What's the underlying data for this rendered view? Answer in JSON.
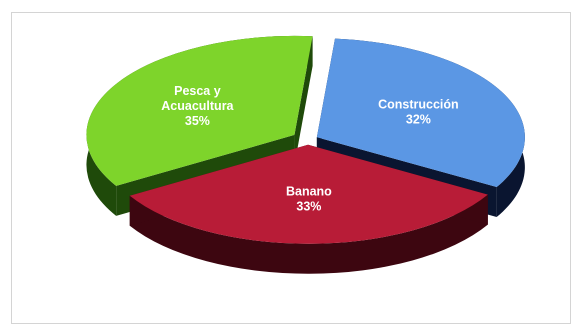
{
  "chart_data": {
    "type": "pie",
    "style": "3d-exploded",
    "slices": [
      {
        "label": "Construcción",
        "value": 32,
        "value_label": "32%",
        "color": "#5b97e4",
        "side_color": "#0a1530"
      },
      {
        "label": "Banano",
        "value": 33,
        "value_label": "33%",
        "color": "#b81c37",
        "side_color": "#3d0610"
      },
      {
        "label": "Pesca y Acuacultura",
        "label_lines": [
          "Pesca y",
          "Acuacultura"
        ],
        "value": 35,
        "value_label": "35%",
        "color": "#7ed42b",
        "side_color": "#1f4a0a"
      }
    ],
    "legend": "none"
  }
}
